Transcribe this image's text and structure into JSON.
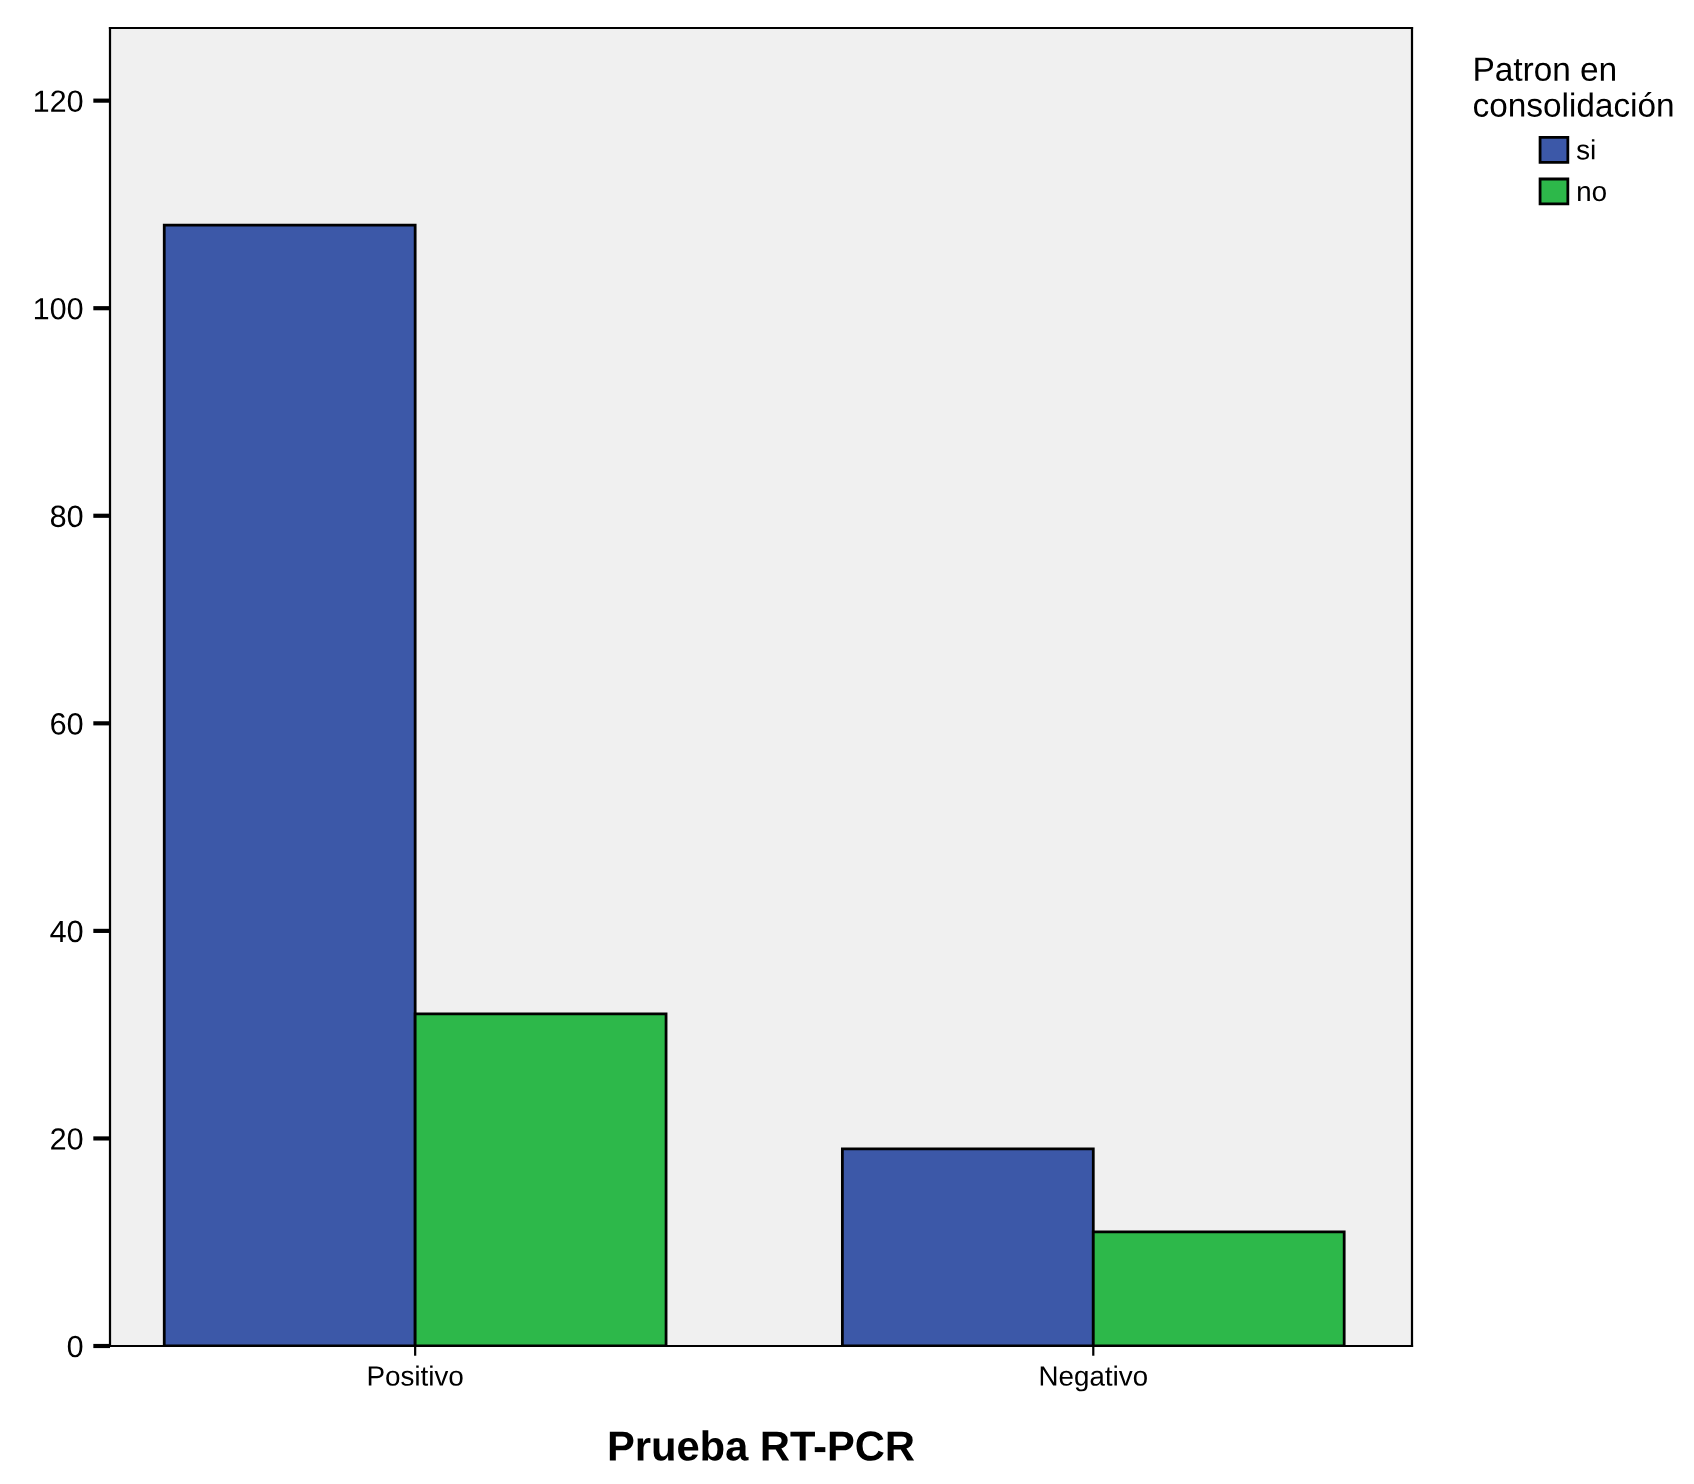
{
  "chart_data": {
    "type": "bar",
    "xlabel": "Prueba RT-PCR",
    "legend_title": "Patron en consolidación",
    "categories": [
      "Positivo",
      "Negativo"
    ],
    "series": [
      {
        "name": "si",
        "color": "#3c58a8",
        "values": [
          108,
          19
        ]
      },
      {
        "name": "no",
        "color": "#2db84a",
        "values": [
          32,
          11
        ]
      }
    ],
    "ylim": [
      0,
      127
    ],
    "yticks": [
      0,
      20,
      40,
      60,
      80,
      100,
      120
    ],
    "grid": false,
    "legend": "top right"
  }
}
